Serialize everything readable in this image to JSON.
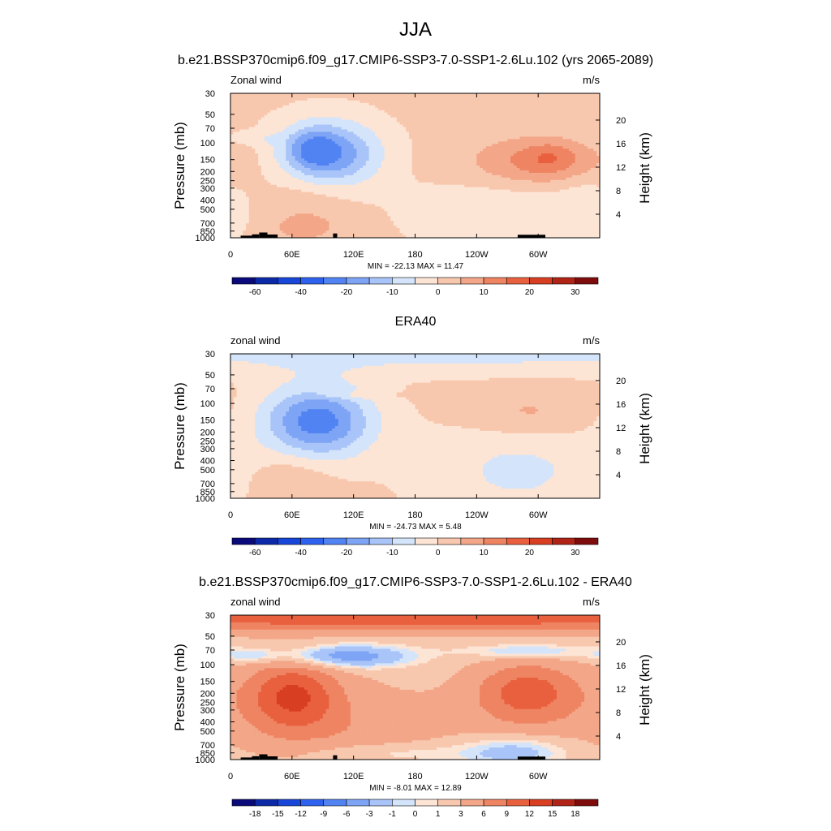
{
  "figure": {
    "title": "JJA",
    "panel_titles": [
      "b.e21.BSSP370cmip6.f09_g17.CMIP6-SSP3-7.0-SSP1-2.6Lu.102 (yrs 2065-2089)",
      "ERA40",
      "b.e21.BSSP370cmip6.f09_g17.CMIP6-SSP3-7.0-SSP1-2.6Lu.102 - ERA40"
    ]
  },
  "colors": {
    "diverging": [
      "#0a0a7a",
      "#0c2aa8",
      "#1846d8",
      "#2e62ee",
      "#5183f2",
      "#7ea4f5",
      "#a9c4f8",
      "#d4e4fa",
      "#fde5d6",
      "#f8c8ae",
      "#f3a688",
      "#ee8462",
      "#e9603e",
      "#d83e22",
      "#b02418",
      "#7f0c0c"
    ],
    "topo": "#000000"
  },
  "chart_data": [
    {
      "type": "heatmap",
      "plot_label": "Zonal wind",
      "units": "m/s",
      "ylabel": "Pressure (mb)",
      "y2label": "Height (km)",
      "x_ticks": [
        "0",
        "60E",
        "120E",
        "180",
        "120W",
        "60W"
      ],
      "x_tick_lon": [
        0,
        60,
        120,
        180,
        240,
        300
      ],
      "xlim": [
        0,
        360
      ],
      "y_ticks": [
        30,
        50,
        70,
        100,
        150,
        200,
        250,
        300,
        400,
        500,
        700,
        850,
        1000
      ],
      "ylim": [
        1000,
        30
      ],
      "y2_ticks": [
        4,
        8,
        12,
        16,
        20
      ],
      "min_max": "MIN = -22.13  MAX =  11.47",
      "min": -22.13,
      "max": 11.47,
      "colorbar": {
        "levels": [
          -70,
          -60,
          -50,
          -40,
          -30,
          -20,
          -15,
          -10,
          -5,
          0,
          5,
          10,
          15,
          20,
          25,
          30,
          35
        ],
        "labels": [
          "-60",
          "-40",
          "-20",
          "-10",
          "0",
          "10",
          "20",
          "30"
        ],
        "label_levels": [
          -60,
          -40,
          -20,
          -10,
          0,
          10,
          20,
          30
        ]
      },
      "background": 1,
      "blobs": [
        {
          "lon": 95,
          "p": 130,
          "rx": 48,
          "ry": 0.22,
          "amp": -22
        },
        {
          "lon": 80,
          "p": 115,
          "rx": 22,
          "ry": 0.13,
          "amp": -8
        },
        {
          "lon": 20,
          "p": 90,
          "rx": 30,
          "ry": 0.05,
          "amp": -4
        },
        {
          "lon": 300,
          "p": 160,
          "rx": 65,
          "ry": 0.17,
          "amp": 11
        },
        {
          "lon": 312,
          "p": 140,
          "rx": 25,
          "ry": 0.1,
          "amp": 5
        },
        {
          "lon": 75,
          "p": 500,
          "rx": 40,
          "ry": 0.3,
          "amp": 4
        },
        {
          "lon": 70,
          "p": 780,
          "rx": 25,
          "ry": 0.07,
          "amp": 5
        },
        {
          "lon": 270,
          "p": 550,
          "rx": 90,
          "ry": 0.25,
          "amp": -5
        },
        {
          "lon": 345,
          "p": 400,
          "rx": 25,
          "ry": 0.2,
          "amp": -3
        }
      ],
      "topo": [
        [
          10,
          21,
          950
        ],
        [
          21,
          28,
          920
        ],
        [
          28,
          36,
          880
        ],
        [
          36,
          46,
          925
        ],
        [
          100,
          104,
          900
        ],
        [
          280,
          307,
          930
        ]
      ]
    },
    {
      "type": "heatmap",
      "plot_label": "zonal wind",
      "units": "m/s",
      "ylabel": "Pressure (mb)",
      "y2label": "Height (km)",
      "x_ticks": [
        "0",
        "60E",
        "120E",
        "180",
        "120W",
        "60W"
      ],
      "x_tick_lon": [
        0,
        60,
        120,
        180,
        240,
        300
      ],
      "xlim": [
        0,
        360
      ],
      "y_ticks": [
        30,
        50,
        70,
        100,
        150,
        200,
        250,
        300,
        400,
        500,
        700,
        850,
        1000
      ],
      "ylim": [
        1000,
        30
      ],
      "y2_ticks": [
        4,
        8,
        12,
        16,
        20
      ],
      "min_max": "MIN = -24.73  MAX =   5.48",
      "min": -24.73,
      "max": 5.48,
      "colorbar": {
        "levels": [
          -70,
          -60,
          -50,
          -40,
          -30,
          -20,
          -15,
          -10,
          -5,
          0,
          5,
          10,
          15,
          20,
          25,
          30,
          35
        ],
        "labels": [
          "-60",
          "-40",
          "-20",
          "-10",
          "0",
          "10",
          "20",
          "30"
        ],
        "label_levels": [
          -60,
          -40,
          -20,
          -10,
          0,
          10,
          20,
          30
        ]
      },
      "background": 1,
      "blobs": [
        {
          "lon": 85,
          "p": 155,
          "rx": 52,
          "ry": 0.25,
          "amp": -24
        },
        {
          "lon": 180,
          "p": 32,
          "rx": 500,
          "ry": 0.12,
          "amp": -7
        },
        {
          "lon": 280,
          "p": 500,
          "rx": 90,
          "ry": 0.35,
          "amp": -7
        },
        {
          "lon": 290,
          "p": 130,
          "rx": 60,
          "ry": 0.17,
          "amp": 6
        },
        {
          "lon": 60,
          "p": 650,
          "rx": 35,
          "ry": 0.2,
          "amp": 5
        },
        {
          "lon": 110,
          "p": 82,
          "rx": 40,
          "ry": 0.03,
          "amp": 4
        }
      ],
      "topo": []
    },
    {
      "type": "heatmap",
      "plot_label": "zonal wind",
      "units": "m/s",
      "ylabel": "Pressure (mb)",
      "y2label": "Height (km)",
      "x_ticks": [
        "0",
        "60E",
        "120E",
        "180",
        "120W",
        "60W"
      ],
      "x_tick_lon": [
        0,
        60,
        120,
        180,
        240,
        300
      ],
      "xlim": [
        0,
        360
      ],
      "y_ticks": [
        30,
        50,
        70,
        100,
        150,
        200,
        250,
        300,
        400,
        500,
        700,
        850,
        1000
      ],
      "ylim": [
        1000,
        30
      ],
      "y2_ticks": [
        4,
        8,
        12,
        16,
        20
      ],
      "min_max": "MIN =  -8.01  MAX =  12.89",
      "min": -8.01,
      "max": 12.89,
      "colorbar": {
        "levels": [
          -21,
          -18,
          -15,
          -12,
          -9,
          -6,
          -3,
          -1,
          0,
          1,
          3,
          6,
          9,
          12,
          15,
          18,
          21
        ],
        "labels": [
          "-18",
          "-15",
          "-12",
          "-9",
          "-6",
          "-3",
          "-1",
          "0",
          "1",
          "3",
          "6",
          "9",
          "12",
          "15",
          "18"
        ],
        "label_levels": [
          -18,
          -15,
          -12,
          -9,
          -6,
          -3,
          -1,
          0,
          1,
          3,
          6,
          9,
          12,
          15,
          18
        ]
      },
      "background": 2,
      "blobs": [
        {
          "lon": 180,
          "p": 32,
          "rx": 500,
          "ry": 0.09,
          "amp": 9
        },
        {
          "lon": 110,
          "p": 82,
          "rx": 65,
          "ry": 0.08,
          "amp": -7
        },
        {
          "lon": 20,
          "p": 80,
          "rx": 30,
          "ry": 0.05,
          "amp": -3
        },
        {
          "lon": 290,
          "p": 72,
          "rx": 60,
          "ry": 0.05,
          "amp": -4
        },
        {
          "lon": 60,
          "p": 210,
          "rx": 45,
          "ry": 0.25,
          "amp": 10
        },
        {
          "lon": 290,
          "p": 190,
          "rx": 50,
          "ry": 0.2,
          "amp": 8
        },
        {
          "lon": 120,
          "p": 500,
          "rx": 90,
          "ry": 0.3,
          "amp": 3
        },
        {
          "lon": 280,
          "p": 820,
          "rx": 55,
          "ry": 0.12,
          "amp": -5
        },
        {
          "lon": 150,
          "p": 860,
          "rx": 90,
          "ry": 0.08,
          "amp": -3
        },
        {
          "lon": 300,
          "p": 450,
          "rx": 80,
          "ry": 0.3,
          "amp": 2
        }
      ],
      "topo": [
        [
          10,
          21,
          950
        ],
        [
          21,
          28,
          920
        ],
        [
          28,
          36,
          880
        ],
        [
          36,
          46,
          925
        ],
        [
          100,
          104,
          900
        ],
        [
          280,
          307,
          930
        ]
      ]
    }
  ]
}
